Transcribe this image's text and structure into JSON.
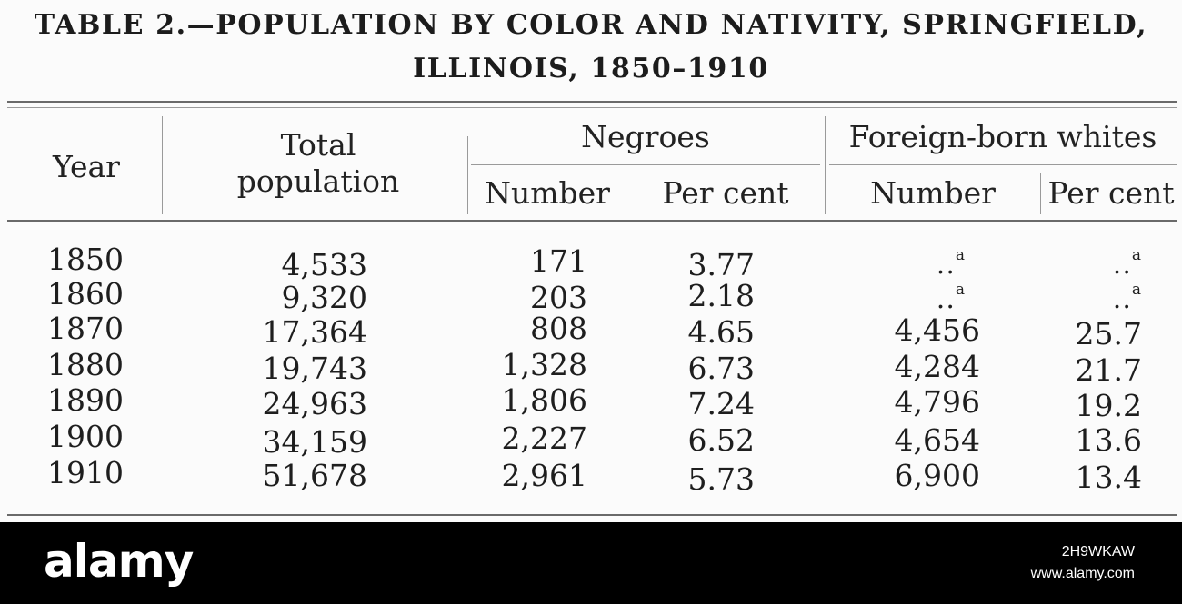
{
  "title_line1": "TABLE 2.—POPULATION BY COLOR AND NATIVITY, SPRINGFIELD,",
  "title_line2": "ILLINOIS, 1850–1910",
  "headers": {
    "year": "Year",
    "total_line1": "Total",
    "total_line2": "population",
    "negroes": "Negroes",
    "foreign_born": "Foreign-born whites",
    "number": "Number",
    "per_cent": "Per cent"
  },
  "rows": [
    {
      "year": "1850",
      "total": "4,533",
      "negro_number": "171",
      "negro_pct": "3.77",
      "fb_number": "..",
      "fb_number_note": "a",
      "fb_pct": "..",
      "fb_pct_note": "a"
    },
    {
      "year": "1860",
      "total": "9,320",
      "negro_number": "203",
      "negro_pct": "2.18",
      "fb_number": "..",
      "fb_number_note": "a",
      "fb_pct": "..",
      "fb_pct_note": "a"
    },
    {
      "year": "1870",
      "total": "17,364",
      "negro_number": "808",
      "negro_pct": "4.65",
      "fb_number": "4,456",
      "fb_pct": "25.7"
    },
    {
      "year": "1880",
      "total": "19,743",
      "negro_number": "1,328",
      "negro_pct": "6.73",
      "fb_number": "4,284",
      "fb_pct": "21.7"
    },
    {
      "year": "1890",
      "total": "24,963",
      "negro_number": "1,806",
      "negro_pct": "7.24",
      "fb_number": "4,796",
      "fb_pct": "19.2"
    },
    {
      "year": "1900",
      "total": "34,159",
      "negro_number": "2,227",
      "negro_pct": "6.52",
      "fb_number": "4,654",
      "fb_pct": "13.6"
    },
    {
      "year": "1910",
      "total": "51,678",
      "negro_number": "2,961",
      "negro_pct": "5.73",
      "fb_number": "6,900",
      "fb_pct": "13.4"
    }
  ],
  "watermark": {
    "logo": "alamy",
    "image_id": "2H9WKAW",
    "site": "www.alamy.com"
  }
}
